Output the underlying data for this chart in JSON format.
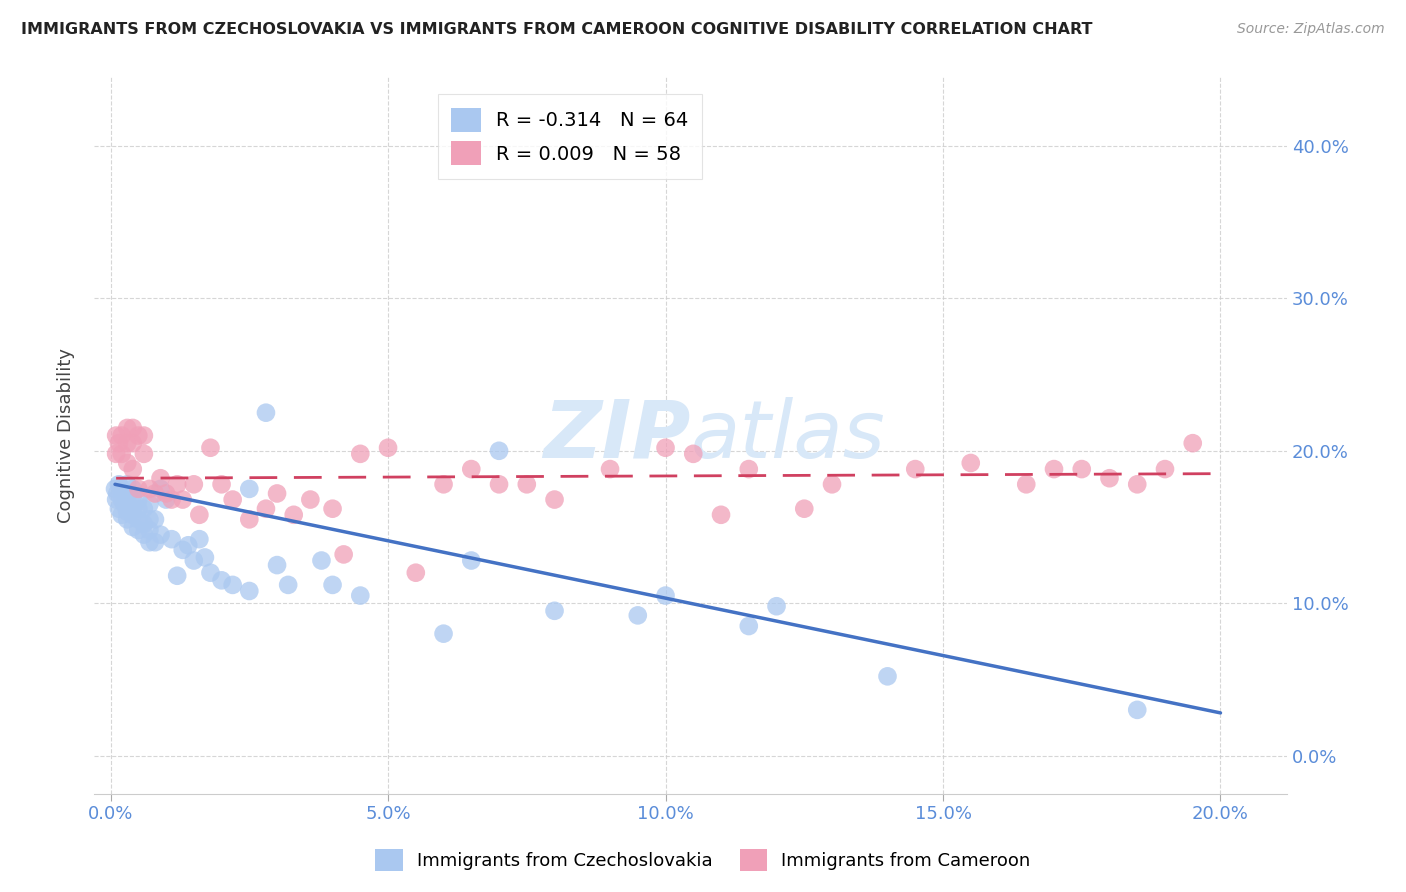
{
  "title": "IMMIGRANTS FROM CZECHOSLOVAKIA VS IMMIGRANTS FROM CAMEROON COGNITIVE DISABILITY CORRELATION CHART",
  "source": "Source: ZipAtlas.com",
  "xlabel_vals": [
    0.0,
    0.05,
    0.1,
    0.15,
    0.2
  ],
  "ylabel_vals": [
    0.0,
    0.1,
    0.2,
    0.3,
    0.4
  ],
  "xlim": [
    -0.003,
    0.212
  ],
  "ylim": [
    -0.025,
    0.445
  ],
  "series1_label": "Immigrants from Czechoslovakia",
  "series2_label": "Immigrants from Cameroon",
  "series1_color": "#aac8f0",
  "series2_color": "#f0a0b8",
  "series1_R": "-0.314",
  "series1_N": "64",
  "series2_R": "0.009",
  "series2_N": "58",
  "trend1_color": "#4472c4",
  "trend2_color": "#d04060",
  "watermark_zip": "ZIP",
  "watermark_atlas": "atlas",
  "watermark_color": "#d8e8f8",
  "series1_x": [
    0.0008,
    0.001,
    0.0012,
    0.0015,
    0.0015,
    0.002,
    0.002,
    0.002,
    0.0025,
    0.0025,
    0.003,
    0.003,
    0.003,
    0.003,
    0.003,
    0.004,
    0.004,
    0.004,
    0.004,
    0.004,
    0.005,
    0.005,
    0.005,
    0.005,
    0.006,
    0.006,
    0.006,
    0.007,
    0.007,
    0.007,
    0.007,
    0.008,
    0.008,
    0.009,
    0.009,
    0.01,
    0.011,
    0.012,
    0.013,
    0.014,
    0.015,
    0.016,
    0.017,
    0.018,
    0.02,
    0.022,
    0.025,
    0.025,
    0.028,
    0.03,
    0.032,
    0.038,
    0.04,
    0.045,
    0.06,
    0.065,
    0.07,
    0.08,
    0.095,
    0.1,
    0.115,
    0.12,
    0.14,
    0.185
  ],
  "series1_y": [
    0.175,
    0.168,
    0.172,
    0.162,
    0.178,
    0.158,
    0.168,
    0.175,
    0.165,
    0.172,
    0.155,
    0.16,
    0.168,
    0.172,
    0.178,
    0.15,
    0.158,
    0.162,
    0.17,
    0.175,
    0.148,
    0.155,
    0.162,
    0.168,
    0.145,
    0.152,
    0.162,
    0.14,
    0.148,
    0.155,
    0.165,
    0.14,
    0.155,
    0.145,
    0.175,
    0.168,
    0.142,
    0.118,
    0.135,
    0.138,
    0.128,
    0.142,
    0.13,
    0.12,
    0.115,
    0.112,
    0.108,
    0.175,
    0.225,
    0.125,
    0.112,
    0.128,
    0.112,
    0.105,
    0.08,
    0.128,
    0.2,
    0.095,
    0.092,
    0.105,
    0.085,
    0.098,
    0.052,
    0.03
  ],
  "series2_x": [
    0.001,
    0.001,
    0.0015,
    0.002,
    0.002,
    0.003,
    0.003,
    0.003,
    0.004,
    0.004,
    0.004,
    0.005,
    0.005,
    0.006,
    0.006,
    0.007,
    0.008,
    0.009,
    0.01,
    0.011,
    0.012,
    0.013,
    0.015,
    0.016,
    0.018,
    0.02,
    0.022,
    0.025,
    0.028,
    0.03,
    0.033,
    0.036,
    0.04,
    0.042,
    0.045,
    0.05,
    0.055,
    0.06,
    0.065,
    0.07,
    0.075,
    0.08,
    0.09,
    0.1,
    0.105,
    0.11,
    0.115,
    0.125,
    0.13,
    0.145,
    0.155,
    0.165,
    0.17,
    0.175,
    0.18,
    0.185,
    0.19,
    0.195
  ],
  "series2_y": [
    0.21,
    0.198,
    0.205,
    0.198,
    0.21,
    0.205,
    0.192,
    0.215,
    0.188,
    0.205,
    0.215,
    0.21,
    0.175,
    0.198,
    0.21,
    0.175,
    0.172,
    0.182,
    0.172,
    0.168,
    0.178,
    0.168,
    0.178,
    0.158,
    0.202,
    0.178,
    0.168,
    0.155,
    0.162,
    0.172,
    0.158,
    0.168,
    0.162,
    0.132,
    0.198,
    0.202,
    0.12,
    0.178,
    0.188,
    0.178,
    0.178,
    0.168,
    0.188,
    0.202,
    0.198,
    0.158,
    0.188,
    0.162,
    0.178,
    0.188,
    0.192,
    0.178,
    0.188,
    0.188,
    0.182,
    0.178,
    0.188,
    0.205
  ],
  "trend1_x_start": 0.0008,
  "trend1_x_end": 0.2,
  "trend1_y_start": 0.178,
  "trend1_y_end": 0.028,
  "trend2_x_start": 0.001,
  "trend2_x_end": 0.2,
  "trend2_y_start": 0.182,
  "trend2_y_end": 0.185
}
